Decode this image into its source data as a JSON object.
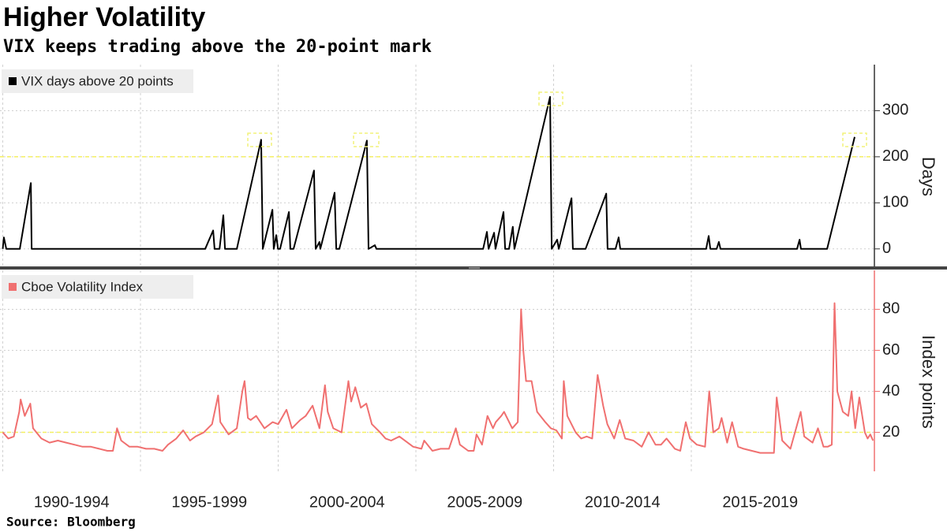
{
  "title": "Higher Volatility",
  "subtitle": "VIX keeps trading above the 20-point mark",
  "source": "Source: Bloomberg",
  "xlim": [
    1990,
    2021.65
  ],
  "xticks": [
    {
      "value": 1990,
      "label": "1990-1994"
    },
    {
      "value": 1995,
      "label": "1995-1999"
    },
    {
      "value": 2000,
      "label": "2000-2004"
    },
    {
      "value": 2005,
      "label": "2005-2009"
    },
    {
      "value": 2010,
      "label": "2010-2014"
    },
    {
      "value": 2015,
      "label": "2015-2019"
    }
  ],
  "chart_data": [
    {
      "type": "line",
      "ylabel": "Days",
      "ylim": [
        -38,
        400
      ],
      "yticks": [
        0,
        100,
        200,
        300
      ],
      "reference_line": 200,
      "grid": true,
      "legend": "top-left",
      "axis_color": "#333333",
      "series": [
        {
          "name": "VIX days above 20 points",
          "color": "#000000",
          "x": [
            1990.0,
            1990.04,
            1990.13,
            1990.62,
            1991.02,
            1991.05,
            1997.35,
            1997.64,
            1997.69,
            1997.87,
            1998.01,
            1998.07,
            1998.5,
            1999.38,
            1999.44,
            1999.79,
            1999.84,
            1999.93,
            1999.99,
            2000.07,
            2000.39,
            2000.44,
            2000.56,
            2001.3,
            2001.36,
            2001.5,
            2001.53,
            2002.05,
            2002.11,
            2002.22,
            2003.22,
            2003.28,
            2003.51,
            2003.57,
            2007.44,
            2007.58,
            2007.64,
            2007.84,
            2007.89,
            2008.18,
            2008.24,
            2008.38,
            2008.52,
            2008.58,
            2009.87,
            2009.93,
            2010.13,
            2010.19,
            2010.65,
            2010.7,
            2011.16,
            2011.91,
            2011.96,
            2012.25,
            2012.36,
            2012.42,
            2015.54,
            2015.63,
            2015.69,
            2015.92,
            2016.0,
            2016.06,
            2018.84,
            2018.93,
            2018.98,
            2019.93,
            2020.93
          ],
          "values": [
            0,
            25,
            0,
            0,
            143,
            0,
            0,
            40,
            0,
            0,
            73,
            0,
            0,
            237,
            0,
            85,
            0,
            30,
            0,
            0,
            80,
            0,
            0,
            170,
            0,
            15,
            0,
            122,
            0,
            0,
            235,
            0,
            8,
            0,
            0,
            37,
            0,
            35,
            0,
            80,
            0,
            0,
            48,
            0,
            330,
            0,
            20,
            0,
            110,
            0,
            0,
            120,
            0,
            0,
            25,
            0,
            0,
            28,
            0,
            0,
            15,
            0,
            0,
            20,
            0,
            0,
            243
          ]
        }
      ]
    },
    {
      "type": "line",
      "ylabel": "Index points",
      "ylim": [
        1,
        99
      ],
      "yticks": [
        20,
        40,
        60,
        80
      ],
      "reference_line": 20,
      "grid": true,
      "legend": "top-left",
      "axis_color": "#f07070",
      "series": [
        {
          "name": "Cboe Volatility Index",
          "color": "#f07070",
          "x": [
            1990.0,
            1990.2,
            1990.4,
            1990.6,
            1990.65,
            1990.8,
            1991.0,
            1991.1,
            1991.4,
            1991.7,
            1992.0,
            1992.3,
            1992.6,
            1992.9,
            1993.2,
            1993.5,
            1993.8,
            1994.0,
            1994.15,
            1994.3,
            1994.6,
            1994.9,
            1995.2,
            1995.5,
            1995.8,
            1996.0,
            1996.3,
            1996.55,
            1996.8,
            1997.0,
            1997.3,
            1997.6,
            1997.82,
            1997.9,
            1998.2,
            1998.5,
            1998.7,
            1998.78,
            1998.9,
            1999.0,
            1999.2,
            1999.5,
            1999.8,
            2000.0,
            2000.3,
            2000.5,
            2000.8,
            2001.0,
            2001.25,
            2001.5,
            2001.7,
            2001.8,
            2002.0,
            2002.3,
            2002.55,
            2002.65,
            2002.8,
            2003.0,
            2003.2,
            2003.4,
            2003.7,
            2003.9,
            2004.1,
            2004.4,
            2004.7,
            2004.9,
            2005.2,
            2005.3,
            2005.6,
            2005.9,
            2006.2,
            2006.45,
            2006.6,
            2006.9,
            2007.1,
            2007.2,
            2007.4,
            2007.6,
            2007.8,
            2007.9,
            2008.1,
            2008.2,
            2008.5,
            2008.7,
            2008.82,
            2008.9,
            2009.0,
            2009.2,
            2009.4,
            2009.7,
            2009.9,
            2010.1,
            2010.3,
            2010.37,
            2010.5,
            2010.8,
            2011.0,
            2011.2,
            2011.4,
            2011.6,
            2011.8,
            2011.95,
            2012.2,
            2012.4,
            2012.6,
            2012.9,
            2013.2,
            2013.45,
            2013.7,
            2013.9,
            2014.1,
            2014.4,
            2014.6,
            2014.8,
            2014.95,
            2015.2,
            2015.5,
            2015.65,
            2015.8,
            2016.0,
            2016.1,
            2016.3,
            2016.48,
            2016.7,
            2016.9,
            2017.2,
            2017.5,
            2017.8,
            2018.0,
            2018.1,
            2018.3,
            2018.6,
            2018.97,
            2019.1,
            2019.4,
            2019.6,
            2019.8,
            2019.95,
            2020.1,
            2020.2,
            2020.3,
            2020.5,
            2020.7,
            2020.82,
            2020.95,
            2021.1,
            2021.3,
            2021.4,
            2021.5,
            2021.6
          ],
          "values": [
            20,
            17,
            18,
            30,
            36,
            28,
            34,
            22,
            17,
            15,
            16,
            15,
            14,
            13,
            13,
            12,
            11,
            11,
            22,
            16,
            13,
            13,
            12,
            12,
            11,
            14,
            17,
            21,
            16,
            18,
            20,
            24,
            38,
            25,
            19,
            22,
            40,
            45,
            27,
            26,
            28,
            22,
            25,
            24,
            31,
            22,
            26,
            28,
            33,
            22,
            43,
            30,
            22,
            20,
            45,
            35,
            42,
            32,
            34,
            24,
            20,
            17,
            16,
            18,
            15,
            13,
            12,
            16,
            11,
            12,
            12,
            22,
            14,
            11,
            11,
            19,
            14,
            28,
            22,
            25,
            28,
            30,
            22,
            25,
            80,
            60,
            45,
            45,
            30,
            25,
            22,
            21,
            17,
            45,
            28,
            20,
            17,
            18,
            17,
            48,
            33,
            24,
            17,
            26,
            17,
            16,
            13,
            20,
            14,
            14,
            17,
            12,
            11,
            25,
            17,
            14,
            13,
            40,
            20,
            22,
            27,
            15,
            25,
            13,
            12,
            11,
            10,
            10,
            10,
            37,
            16,
            12,
            30,
            18,
            15,
            22,
            13,
            13,
            14,
            83,
            40,
            30,
            28,
            40,
            22,
            37,
            20,
            17,
            19,
            16
          ]
        }
      ]
    }
  ]
}
